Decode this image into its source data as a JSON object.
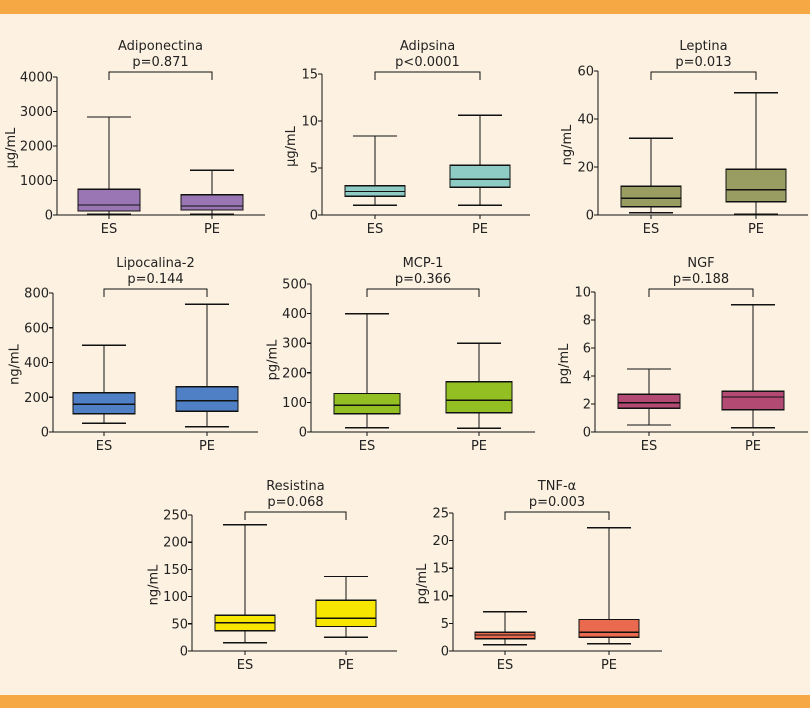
{
  "page": {
    "background": "#fdf2e1",
    "band_color": "#f6a844"
  },
  "chart_data": [
    {
      "type": "box",
      "title": "Adiponectina",
      "pvalue": "p=0.871",
      "ylabel": "µg/mL",
      "ylim": [
        0,
        4000
      ],
      "yticks": [
        0,
        1000,
        2000,
        3000,
        4000
      ],
      "categories": [
        "ES",
        "PE"
      ],
      "color": "#9b76b5",
      "boxes": [
        {
          "min": 20,
          "q1": 115,
          "median": 290,
          "q3": 750,
          "max": 2840
        },
        {
          "min": 20,
          "q1": 145,
          "median": 260,
          "q3": 590,
          "max": 1300
        }
      ]
    },
    {
      "type": "box",
      "title": "Adipsina",
      "pvalue": "p<0.0001",
      "ylabel": "µg/mL",
      "ylim": [
        0,
        15
      ],
      "yticks": [
        0,
        5,
        10,
        15
      ],
      "categories": [
        "ES",
        "PE"
      ],
      "color": "#8ecbc4",
      "boxes": [
        {
          "min": 1.05,
          "q1": 2.0,
          "median": 2.5,
          "q3": 3.1,
          "max": 8.4
        },
        {
          "min": 1.05,
          "q1": 2.95,
          "median": 3.8,
          "q3": 5.3,
          "max": 10.6
        }
      ]
    },
    {
      "type": "box",
      "title": "Leptina",
      "pvalue": "p=0.013",
      "ylabel": "ng/mL",
      "ylim": [
        0,
        60
      ],
      "yticks": [
        0,
        20,
        40,
        60
      ],
      "categories": [
        "ES",
        "PE"
      ],
      "color": "#9a9d62",
      "boxes": [
        {
          "min": 1,
          "q1": 3.5,
          "median": 7,
          "q3": 12,
          "max": 32
        },
        {
          "min": 0.3,
          "q1": 5.5,
          "median": 10.5,
          "q3": 19,
          "max": 51
        }
      ]
    },
    {
      "type": "box",
      "title": "Lipocalina-2",
      "pvalue": "p=0.144",
      "ylabel": "ng/mL",
      "ylim": [
        0,
        800
      ],
      "yticks": [
        0,
        200,
        400,
        600,
        800
      ],
      "categories": [
        "ES",
        "PE"
      ],
      "color": "#4f7fc4",
      "boxes": [
        {
          "min": 50,
          "q1": 105,
          "median": 160,
          "q3": 225,
          "max": 500
        },
        {
          "min": 30,
          "q1": 120,
          "median": 180,
          "q3": 260,
          "max": 735
        }
      ]
    },
    {
      "type": "box",
      "title": "MCP-1",
      "pvalue": "p=0.366",
      "ylabel": "pg/mL",
      "ylim": [
        0,
        500
      ],
      "yticks": [
        0,
        100,
        200,
        300,
        400,
        500
      ],
      "categories": [
        "ES",
        "PE"
      ],
      "color": "#93bf22",
      "boxes": [
        {
          "min": 15,
          "q1": 62,
          "median": 90,
          "q3": 130,
          "max": 400
        },
        {
          "min": 12,
          "q1": 65,
          "median": 107,
          "q3": 170,
          "max": 300
        }
      ]
    },
    {
      "type": "box",
      "title": "NGF",
      "pvalue": "p=0.188",
      "ylabel": "pg/mL",
      "ylim": [
        0,
        10
      ],
      "yticks": [
        0,
        2,
        4,
        6,
        8,
        10
      ],
      "categories": [
        "ES",
        "PE"
      ],
      "color": "#b24a74",
      "boxes": [
        {
          "min": 0.5,
          "q1": 1.7,
          "median": 2.1,
          "q3": 2.7,
          "max": 4.5
        },
        {
          "min": 0.3,
          "q1": 1.6,
          "median": 2.5,
          "q3": 2.9,
          "max": 9.1
        }
      ]
    },
    {
      "type": "box",
      "title": "Resistina",
      "pvalue": "p=0.068",
      "ylabel": "ng/mL",
      "ylim": [
        0,
        250
      ],
      "yticks": [
        0,
        50,
        100,
        150,
        200,
        250
      ],
      "categories": [
        "ES",
        "PE"
      ],
      "color": "#f7e600",
      "boxes": [
        {
          "min": 15,
          "q1": 37,
          "median": 52,
          "q3": 66,
          "max": 232
        },
        {
          "min": 25,
          "q1": 45,
          "median": 60,
          "q3": 93,
          "max": 137
        }
      ]
    },
    {
      "type": "box",
      "title": "TNF-α",
      "pvalue": "p=0.003",
      "ylabel": "pg/mL",
      "ylim": [
        0,
        25
      ],
      "yticks": [
        0,
        5,
        10,
        15,
        20,
        25
      ],
      "categories": [
        "ES",
        "PE"
      ],
      "color": "#e96a4e",
      "boxes": [
        {
          "min": 1.1,
          "q1": 2.2,
          "median": 2.9,
          "q3": 3.4,
          "max": 7.1
        },
        {
          "min": 1.3,
          "q1": 2.5,
          "median": 3.4,
          "q3": 5.7,
          "max": 22.3
        }
      ]
    }
  ]
}
